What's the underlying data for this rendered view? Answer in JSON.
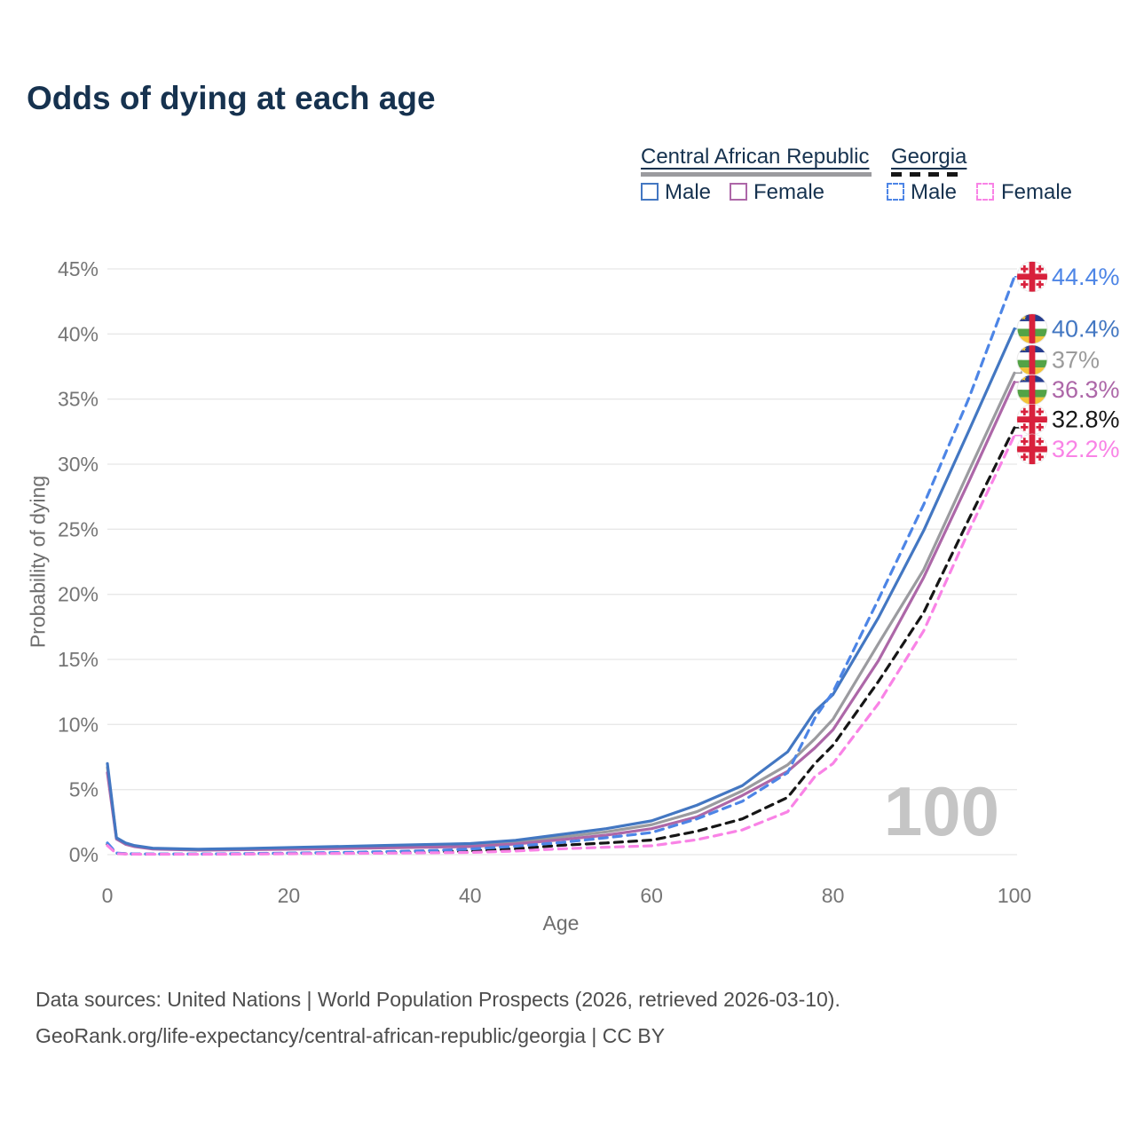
{
  "title": "Odds of dying at each age",
  "legend": {
    "group1": {
      "label": "Central African Republic",
      "rule_color": "#9b9b9f",
      "rule_style": "solid",
      "items": [
        {
          "label": "Male",
          "color": "#4377c2",
          "box_style": "solid"
        },
        {
          "label": "Female",
          "color": "#ad67a8",
          "box_style": "solid"
        }
      ]
    },
    "group2": {
      "label": "Georgia",
      "rule_color": "#161616",
      "rule_style": "dashed",
      "items": [
        {
          "label": "Male",
          "color": "#4d85e6",
          "box_style": "dashed"
        },
        {
          "label": "Female",
          "color": "#f983e6",
          "box_style": "dashed"
        }
      ]
    }
  },
  "chart_data": {
    "type": "line",
    "title": "Odds of dying at each age",
    "xlabel": "Age",
    "ylabel": "Probability of dying",
    "xlim": [
      0,
      100
    ],
    "ylim": [
      0,
      45
    ],
    "x_ticks": [
      0,
      20,
      40,
      60,
      80,
      100
    ],
    "y_ticks": [
      0,
      5,
      10,
      15,
      20,
      25,
      30,
      35,
      40,
      45
    ],
    "y_tick_suffix": "%",
    "grid": "horizontal",
    "legend_position": "top-right",
    "watermark": "100",
    "x": [
      0,
      1,
      2,
      3,
      5,
      10,
      15,
      20,
      25,
      30,
      35,
      40,
      45,
      50,
      55,
      60,
      65,
      70,
      75,
      78,
      80,
      85,
      90,
      95,
      100
    ],
    "series": [
      {
        "name": "Central African Republic Male",
        "country": "Central African Republic",
        "sex": "Male",
        "style": "solid",
        "color": "#4377c2",
        "flag": "car",
        "end_label": "40.4%",
        "end_value": 40.4,
        "values": [
          7.0,
          1.3,
          0.9,
          0.7,
          0.5,
          0.42,
          0.47,
          0.55,
          0.62,
          0.7,
          0.78,
          0.85,
          1.1,
          1.55,
          2.0,
          2.6,
          3.8,
          5.3,
          7.9,
          11.0,
          12.3,
          18.2,
          24.9,
          32.6,
          40.4
        ]
      },
      {
        "name": "Central African Republic Female",
        "country": "Central African Republic",
        "sex": "Female",
        "style": "solid",
        "color": "#ad67a8",
        "flag": "car",
        "end_label": "36.3%",
        "end_value": 36.3,
        "values": [
          6.3,
          1.2,
          0.8,
          0.62,
          0.43,
          0.35,
          0.38,
          0.42,
          0.47,
          0.52,
          0.57,
          0.62,
          0.82,
          1.15,
          1.5,
          2.0,
          2.9,
          4.55,
          6.4,
          8.2,
          9.6,
          14.9,
          21.3,
          28.7,
          36.3
        ]
      },
      {
        "name": "Central African Republic Both sexes",
        "country": "Central African Republic",
        "sex": "Both",
        "style": "solid",
        "color": "#9b9b9f",
        "flag": "car",
        "end_label": "37%",
        "end_value": 37.0,
        "label_color": "#9b9b9b",
        "values": [
          6.7,
          1.25,
          0.85,
          0.66,
          0.46,
          0.38,
          0.42,
          0.48,
          0.54,
          0.6,
          0.67,
          0.73,
          0.95,
          1.35,
          1.75,
          2.3,
          3.3,
          4.9,
          6.9,
          8.9,
          10.4,
          16.2,
          21.9,
          29.5,
          37.0
        ]
      },
      {
        "name": "Georgia Both sexes",
        "country": "Georgia",
        "sex": "Both",
        "style": "dashed",
        "color": "#161616",
        "flag": "georgia",
        "end_label": "32.8%",
        "end_value": 32.8,
        "values": [
          0.8,
          0.1,
          0.07,
          0.05,
          0.04,
          0.04,
          0.06,
          0.1,
          0.13,
          0.17,
          0.21,
          0.28,
          0.45,
          0.72,
          0.9,
          1.12,
          1.8,
          2.75,
          4.4,
          7.0,
          8.4,
          13.3,
          18.6,
          25.8,
          32.8
        ]
      },
      {
        "name": "Georgia Male",
        "country": "Georgia",
        "sex": "Male",
        "style": "dashed",
        "color": "#4d85e6",
        "flag": "georgia",
        "end_label": "44.4%",
        "end_value": 44.4,
        "values": [
          0.9,
          0.12,
          0.08,
          0.06,
          0.05,
          0.05,
          0.08,
          0.12,
          0.16,
          0.22,
          0.3,
          0.43,
          0.65,
          0.93,
          1.3,
          1.7,
          2.75,
          4.1,
          6.3,
          10.5,
          12.5,
          19.6,
          26.9,
          35.1,
          44.4
        ]
      },
      {
        "name": "Georgia Female",
        "country": "Georgia",
        "sex": "Female",
        "style": "dashed",
        "color": "#f983e6",
        "flag": "georgia",
        "end_label": "32.2%",
        "end_value": 32.2,
        "values": [
          0.7,
          0.08,
          0.05,
          0.04,
          0.03,
          0.03,
          0.04,
          0.07,
          0.09,
          0.11,
          0.14,
          0.17,
          0.28,
          0.45,
          0.57,
          0.68,
          1.15,
          1.9,
          3.3,
          6.0,
          7.0,
          11.6,
          17.2,
          24.9,
          32.2
        ]
      }
    ]
  },
  "footer": {
    "line1": "Data sources: United Nations | World Population Prospects (2026, retrieved 2026-03-10).",
    "line2": "GeoRank.org/life-expectancy/central-african-republic/georgia | CC BY"
  },
  "colors": {
    "title_text": "#16324f",
    "tick_text": "#757575",
    "axis_title_text": "#6e6e6e",
    "grid": "#e8e8e8",
    "watermark": "#c5c5c5",
    "footer_text": "#4d4d4d",
    "georgia_flag_red": "#d8213c",
    "car_flag_blue": "#263d8f",
    "car_flag_green": "#53a346",
    "car_flag_yellow": "#f2c438",
    "car_flag_red": "#d8213c"
  }
}
